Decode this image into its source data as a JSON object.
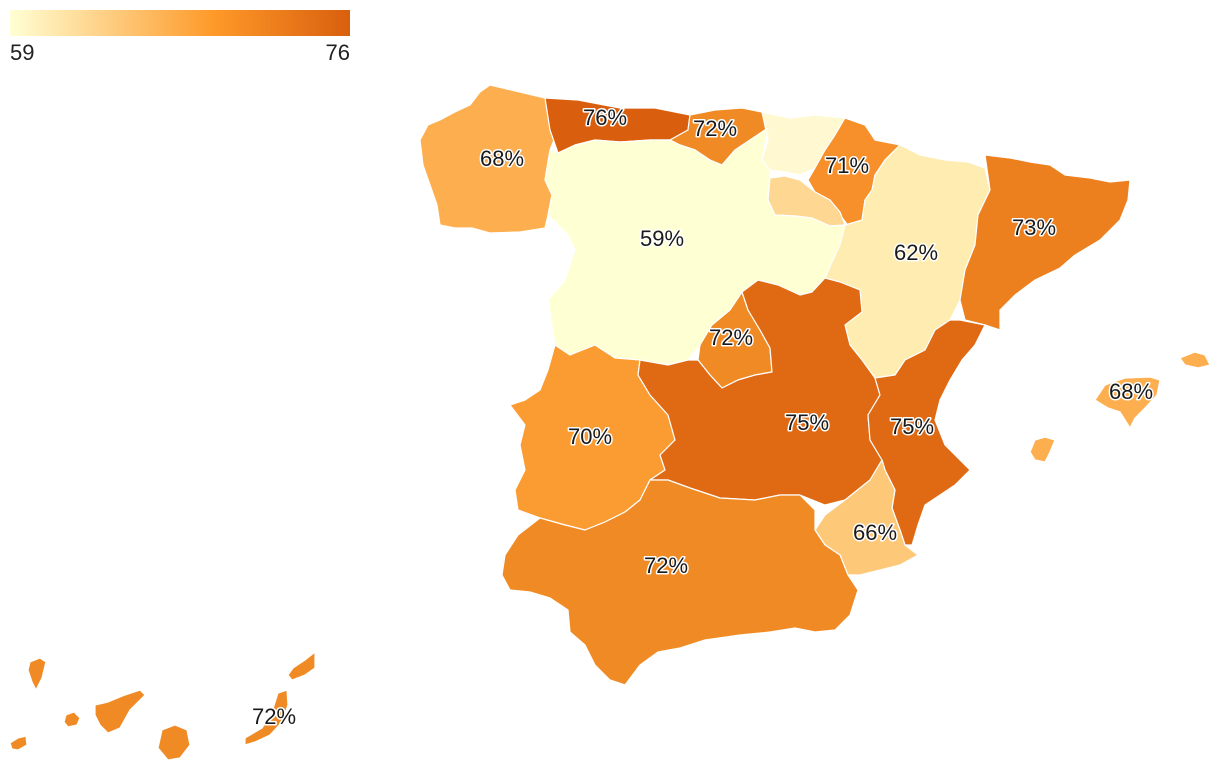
{
  "legend": {
    "min_label": "59",
    "max_label": "76",
    "color_low": "#ffffd4",
    "color_mid": "#fe9929",
    "color_high": "#d95f0e"
  },
  "regions": [
    {
      "key": "galicia",
      "label": "68%",
      "value": 68,
      "color": "#fdae4f"
    },
    {
      "key": "asturias",
      "label": "76%",
      "value": 76,
      "color": "#d95f0e"
    },
    {
      "key": "cantabria",
      "label": "72%",
      "value": 72,
      "color": "#f08a24"
    },
    {
      "key": "pais-vasco",
      "label": "",
      "value": 59,
      "color": "#fff8d0"
    },
    {
      "key": "navarra",
      "label": "71%",
      "value": 71,
      "color": "#f7902a"
    },
    {
      "key": "la-rioja",
      "label": "",
      "value": 65,
      "color": "#fed792"
    },
    {
      "key": "castilla-y-leon",
      "label": "59%",
      "value": 59,
      "color": "#ffffd4"
    },
    {
      "key": "aragon",
      "label": "62%",
      "value": 62,
      "color": "#feecb0"
    },
    {
      "key": "cataluna",
      "label": "73%",
      "value": 73,
      "color": "#ec7f1e"
    },
    {
      "key": "madrid",
      "label": "72%",
      "value": 72,
      "color": "#f08a24"
    },
    {
      "key": "extremadura",
      "label": "70%",
      "value": 70,
      "color": "#fb9c33"
    },
    {
      "key": "castilla-la-mancha",
      "label": "75%",
      "value": 75,
      "color": "#e06a14"
    },
    {
      "key": "valencia",
      "label": "75%",
      "value": 75,
      "color": "#e06a14"
    },
    {
      "key": "baleares",
      "label": "68%",
      "value": 68,
      "color": "#fdae4f"
    },
    {
      "key": "murcia",
      "label": "66%",
      "value": 66,
      "color": "#fec879"
    },
    {
      "key": "andalucia",
      "label": "72%",
      "value": 72,
      "color": "#f08a24"
    },
    {
      "key": "canarias",
      "label": "72%",
      "value": 72,
      "color": "#f08a24"
    }
  ]
}
